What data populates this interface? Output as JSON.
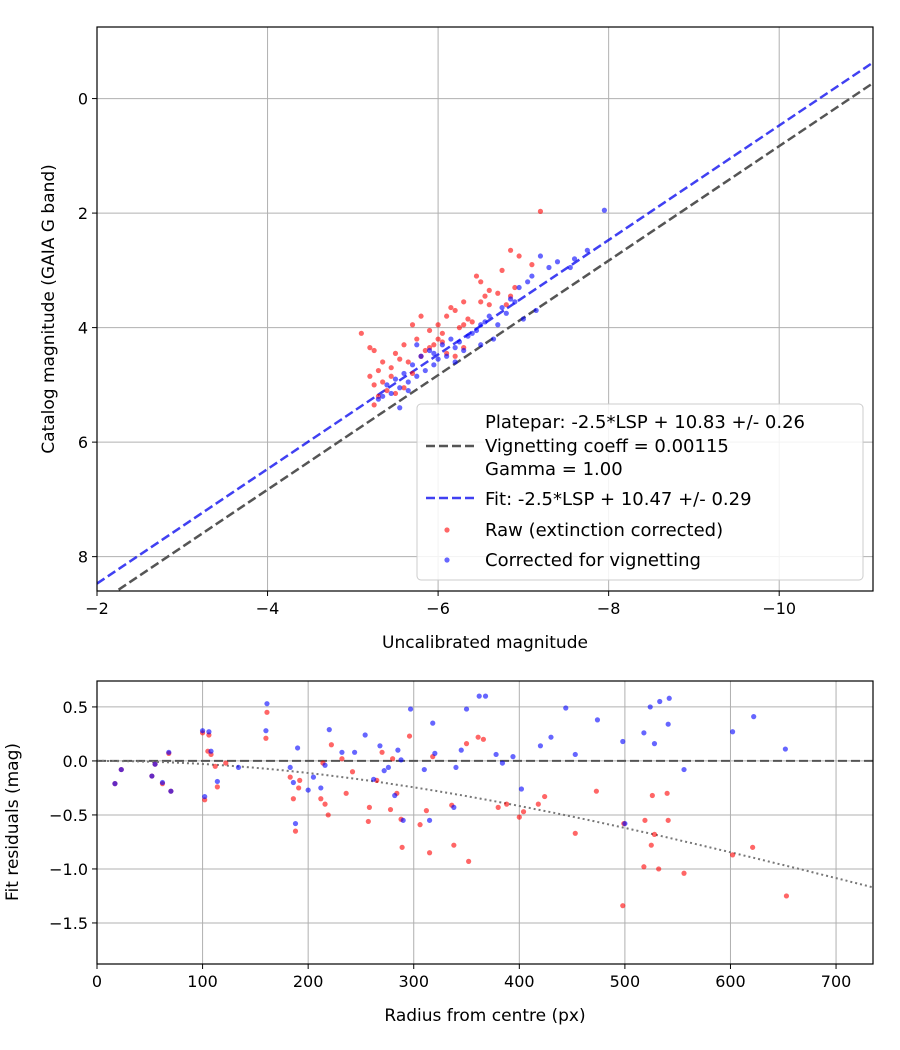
{
  "colors": {
    "raw": "#ff0000",
    "corrected": "#0000ff",
    "platepar": "#555555",
    "fit": "#0000ee",
    "grid": "#b0b0b0"
  },
  "chart_data": [
    {
      "type": "scatter",
      "xlabel": "Uncalibrated magnitude",
      "ylabel": "Catalog magnitude (GAIA G band)",
      "xlim": [
        -2.0,
        -11.1
      ],
      "ylim": [
        8.6,
        -1.25
      ],
      "x_inverted": true,
      "y_inverted": true,
      "grid": true,
      "legend_position": "lower-right",
      "xticks": [
        -2,
        -4,
        -6,
        -8,
        -10
      ],
      "xtick_labels": [
        "−2",
        "−4",
        "−6",
        "−8",
        "−10"
      ],
      "yticks": [
        0,
        2,
        4,
        6,
        8
      ],
      "ytick_labels": [
        "0",
        "2",
        "4",
        "6",
        "8"
      ],
      "lines": [
        {
          "name": "Platepar: -2.5*LSP + 10.83 +/- 0.26",
          "name_line2": "Vignetting coeff = 0.00115",
          "name_line3": "Gamma = 1.00",
          "offset": 10.83,
          "style": "dashed",
          "color": "#555555"
        },
        {
          "name": "Fit: -2.5*LSP + 10.47 +/- 0.29",
          "offset": 10.47,
          "style": "dashed",
          "color": "#0000ee"
        }
      ],
      "series": [
        {
          "name": "Raw (extinction corrected)",
          "color": "#ff0000",
          "points": [
            [
              -7.2,
              1.97
            ],
            [
              -6.85,
              2.65
            ],
            [
              -6.95,
              2.75
            ],
            [
              -7.1,
              2.9
            ],
            [
              -6.45,
              3.1
            ],
            [
              -6.5,
              3.2
            ],
            [
              -6.6,
              3.35
            ],
            [
              -6.55,
              3.45
            ],
            [
              -6.3,
              3.55
            ],
            [
              -6.7,
              3.4
            ],
            [
              -6.8,
              3.6
            ],
            [
              -6.9,
              3.3
            ],
            [
              -6.2,
              3.7
            ],
            [
              -6.1,
              3.8
            ],
            [
              -6.35,
              3.85
            ],
            [
              -5.8,
              3.8
            ],
            [
              -6.0,
              3.95
            ],
            [
              -5.7,
              3.95
            ],
            [
              -5.9,
              4.05
            ],
            [
              -6.05,
              4.1
            ],
            [
              -6.25,
              4.0
            ],
            [
              -5.1,
              4.1
            ],
            [
              -5.2,
              4.35
            ],
            [
              -5.25,
              4.4
            ],
            [
              -5.5,
              4.45
            ],
            [
              -5.6,
              4.3
            ],
            [
              -5.75,
              4.2
            ],
            [
              -5.55,
              4.55
            ],
            [
              -5.35,
              4.6
            ],
            [
              -5.45,
              4.7
            ],
            [
              -5.3,
              4.75
            ],
            [
              -5.65,
              4.6
            ],
            [
              -5.8,
              4.5
            ],
            [
              -5.9,
              4.35
            ],
            [
              -6.1,
              4.45
            ],
            [
              -6.2,
              4.5
            ],
            [
              -6.3,
              4.35
            ],
            [
              -5.85,
              4.4
            ],
            [
              -5.95,
              4.3
            ],
            [
              -5.2,
              4.85
            ],
            [
              -5.25,
              5.0
            ],
            [
              -5.35,
              4.95
            ],
            [
              -5.4,
              5.1
            ],
            [
              -5.5,
              5.15
            ],
            [
              -5.6,
              5.05
            ],
            [
              -5.3,
              5.2
            ],
            [
              -5.25,
              5.35
            ],
            [
              -5.7,
              4.8
            ],
            [
              -6.05,
              4.25
            ],
            [
              -5.45,
              4.85
            ],
            [
              -6.4,
              3.9
            ],
            [
              -6.15,
              3.65
            ],
            [
              -6.6,
              3.6
            ],
            [
              -6.75,
              3.0
            ],
            [
              -6.85,
              3.45
            ],
            [
              -6.5,
              3.55
            ],
            [
              -6.3,
              3.95
            ],
            [
              -6.0,
              4.2
            ]
          ]
        },
        {
          "name": "Corrected for vignetting",
          "color": "#0000ff",
          "points": [
            [
              -7.95,
              1.95
            ],
            [
              -7.75,
              2.65
            ],
            [
              -7.6,
              2.8
            ],
            [
              -7.55,
              2.95
            ],
            [
              -7.3,
              2.95
            ],
            [
              -7.1,
              3.1
            ],
            [
              -7.2,
              2.75
            ],
            [
              -7.05,
              3.2
            ],
            [
              -6.95,
              3.3
            ],
            [
              -6.9,
              3.55
            ],
            [
              -6.85,
              3.5
            ],
            [
              -7.15,
              3.7
            ],
            [
              -6.8,
              3.75
            ],
            [
              -6.6,
              3.8
            ],
            [
              -6.5,
              3.95
            ],
            [
              -6.45,
              4.05
            ],
            [
              -6.35,
              4.15
            ],
            [
              -6.25,
              4.25
            ],
            [
              -6.2,
              4.35
            ],
            [
              -6.05,
              4.3
            ],
            [
              -6.1,
              4.5
            ],
            [
              -6.0,
              4.55
            ],
            [
              -5.95,
              4.65
            ],
            [
              -5.85,
              4.75
            ],
            [
              -5.75,
              4.85
            ],
            [
              -5.65,
              4.95
            ],
            [
              -5.55,
              5.05
            ],
            [
              -5.45,
              5.15
            ],
            [
              -5.35,
              5.2
            ],
            [
              -5.3,
              5.25
            ],
            [
              -5.5,
              4.9
            ],
            [
              -5.6,
              4.8
            ],
            [
              -5.7,
              4.65
            ],
            [
              -5.8,
              4.5
            ],
            [
              -5.9,
              4.4
            ],
            [
              -6.15,
              4.2
            ],
            [
              -6.4,
              4.1
            ],
            [
              -6.55,
              3.9
            ],
            [
              -6.7,
              3.95
            ],
            [
              -6.3,
              4.4
            ],
            [
              -5.95,
              4.45
            ],
            [
              -5.65,
              5.1
            ],
            [
              -5.55,
              5.4
            ],
            [
              -6.75,
              3.65
            ],
            [
              -7.0,
              3.85
            ],
            [
              -6.65,
              4.2
            ],
            [
              -7.4,
              2.85
            ],
            [
              -5.4,
              5.0
            ],
            [
              -5.75,
              4.3
            ],
            [
              -6.2,
              4.6
            ],
            [
              -6.5,
              4.3
            ]
          ]
        }
      ]
    },
    {
      "type": "scatter",
      "xlabel": "Radius from centre (px)",
      "ylabel": "Fit residuals (mag)",
      "xlim": [
        0,
        735
      ],
      "ylim": [
        -1.88,
        0.74
      ],
      "grid": true,
      "xticks": [
        0,
        100,
        200,
        300,
        400,
        500,
        600,
        700
      ],
      "xtick_labels": [
        "0",
        "100",
        "200",
        "300",
        "400",
        "500",
        "600",
        "700"
      ],
      "yticks": [
        0.5,
        0.0,
        -0.5,
        -1.0,
        -1.5
      ],
      "ytick_labels": [
        "0.5",
        "0.0",
        "−0.5",
        "−1.0",
        "−1.5"
      ],
      "lines": [
        {
          "type": "zero",
          "style": "dashed",
          "color": "#555555"
        },
        {
          "type": "vignetting",
          "coeff": 0.00115,
          "style": "dotted",
          "color": "#777777"
        }
      ],
      "series": [
        {
          "name": "Raw (extinction corrected)",
          "color": "#ff0000",
          "points": [
            [
              17,
              -0.21
            ],
            [
              23,
              -0.08
            ],
            [
              52,
              -0.14
            ],
            [
              55,
              -0.03
            ],
            [
              62,
              -0.21
            ],
            [
              68,
              0.07
            ],
            [
              70,
              -0.28
            ],
            [
              100,
              0.26
            ],
            [
              102,
              -0.36
            ],
            [
              105,
              0.09
            ],
            [
              106,
              0.24
            ],
            [
              108,
              0.06
            ],
            [
              112,
              -0.05
            ],
            [
              114,
              -0.24
            ],
            [
              122,
              -0.02
            ],
            [
              160,
              0.21
            ],
            [
              161,
              0.45
            ],
            [
              183,
              -0.15
            ],
            [
              186,
              -0.35
            ],
            [
              188,
              -0.65
            ],
            [
              191,
              -0.25
            ],
            [
              192,
              -0.18
            ],
            [
              212,
              -0.35
            ],
            [
              214,
              -0.02
            ],
            [
              216,
              -0.4
            ],
            [
              219,
              -0.5
            ],
            [
              222,
              0.15
            ],
            [
              232,
              0.02
            ],
            [
              236,
              -0.3
            ],
            [
              242,
              -0.1
            ],
            [
              257,
              -0.56
            ],
            [
              258,
              -0.43
            ],
            [
              265,
              -0.18
            ],
            [
              270,
              0.08
            ],
            [
              278,
              -0.45
            ],
            [
              280,
              0.02
            ],
            [
              284,
              -0.3
            ],
            [
              288,
              -0.54
            ],
            [
              289,
              -0.8
            ],
            [
              296,
              0.23
            ],
            [
              306,
              -0.59
            ],
            [
              312,
              -0.46
            ],
            [
              315,
              -0.85
            ],
            [
              318,
              0.04
            ],
            [
              336,
              -0.41
            ],
            [
              338,
              -0.78
            ],
            [
              350,
              0.16
            ],
            [
              352,
              -0.93
            ],
            [
              361,
              0.22
            ],
            [
              366,
              0.2
            ],
            [
              380,
              -0.43
            ],
            [
              388,
              -0.4
            ],
            [
              400,
              -0.52
            ],
            [
              404,
              -0.47
            ],
            [
              418,
              -0.4
            ],
            [
              424,
              -0.33
            ],
            [
              453,
              -0.67
            ],
            [
              473,
              -0.28
            ],
            [
              498,
              -1.34
            ],
            [
              499,
              -0.58
            ],
            [
              518,
              -0.98
            ],
            [
              519,
              -0.55
            ],
            [
              525,
              -0.78
            ],
            [
              526,
              -0.32
            ],
            [
              528,
              -0.68
            ],
            [
              532,
              -1.0
            ],
            [
              540,
              -0.3
            ],
            [
              541,
              -0.55
            ],
            [
              556,
              -1.04
            ],
            [
              602,
              -0.87
            ],
            [
              621,
              -0.8
            ],
            [
              653,
              -1.25
            ]
          ]
        },
        {
          "name": "Corrected for vignetting",
          "color": "#0000ff",
          "points": [
            [
              17,
              -0.21
            ],
            [
              23,
              -0.08
            ],
            [
              52,
              -0.14
            ],
            [
              55,
              -0.03
            ],
            [
              62,
              -0.2
            ],
            [
              68,
              0.08
            ],
            [
              70,
              -0.28
            ],
            [
              100,
              0.28
            ],
            [
              102,
              -0.33
            ],
            [
              106,
              0.27
            ],
            [
              108,
              0.09
            ],
            [
              114,
              -0.19
            ],
            [
              134,
              -0.06
            ],
            [
              160,
              0.28
            ],
            [
              161,
              0.53
            ],
            [
              183,
              -0.06
            ],
            [
              186,
              -0.2
            ],
            [
              188,
              -0.58
            ],
            [
              190,
              0.12
            ],
            [
              200,
              -0.27
            ],
            [
              205,
              -0.15
            ],
            [
              212,
              -0.25
            ],
            [
              216,
              -0.04
            ],
            [
              220,
              0.29
            ],
            [
              232,
              0.08
            ],
            [
              244,
              0.08
            ],
            [
              254,
              0.24
            ],
            [
              262,
              -0.17
            ],
            [
              268,
              0.14
            ],
            [
              272,
              -0.09
            ],
            [
              276,
              -0.06
            ],
            [
              282,
              -0.32
            ],
            [
              285,
              0.1
            ],
            [
              288,
              0.01
            ],
            [
              290,
              -0.55
            ],
            [
              297,
              0.48
            ],
            [
              310,
              -0.08
            ],
            [
              315,
              -0.55
            ],
            [
              318,
              0.35
            ],
            [
              320,
              0.07
            ],
            [
              338,
              -0.43
            ],
            [
              340,
              -0.06
            ],
            [
              345,
              0.1
            ],
            [
              350,
              0.48
            ],
            [
              362,
              0.6
            ],
            [
              368,
              0.6
            ],
            [
              378,
              0.06
            ],
            [
              384,
              -0.02
            ],
            [
              394,
              0.04
            ],
            [
              402,
              -0.26
            ],
            [
              420,
              0.14
            ],
            [
              430,
              0.22
            ],
            [
              444,
              0.49
            ],
            [
              453,
              0.06
            ],
            [
              474,
              0.38
            ],
            [
              498,
              0.18
            ],
            [
              500,
              -0.58
            ],
            [
              518,
              0.26
            ],
            [
              524,
              0.5
            ],
            [
              528,
              0.16
            ],
            [
              533,
              0.55
            ],
            [
              541,
              0.34
            ],
            [
              542,
              0.58
            ],
            [
              556,
              -0.08
            ],
            [
              602,
              0.27
            ],
            [
              622,
              0.41
            ],
            [
              652,
              0.11
            ]
          ]
        }
      ]
    }
  ]
}
